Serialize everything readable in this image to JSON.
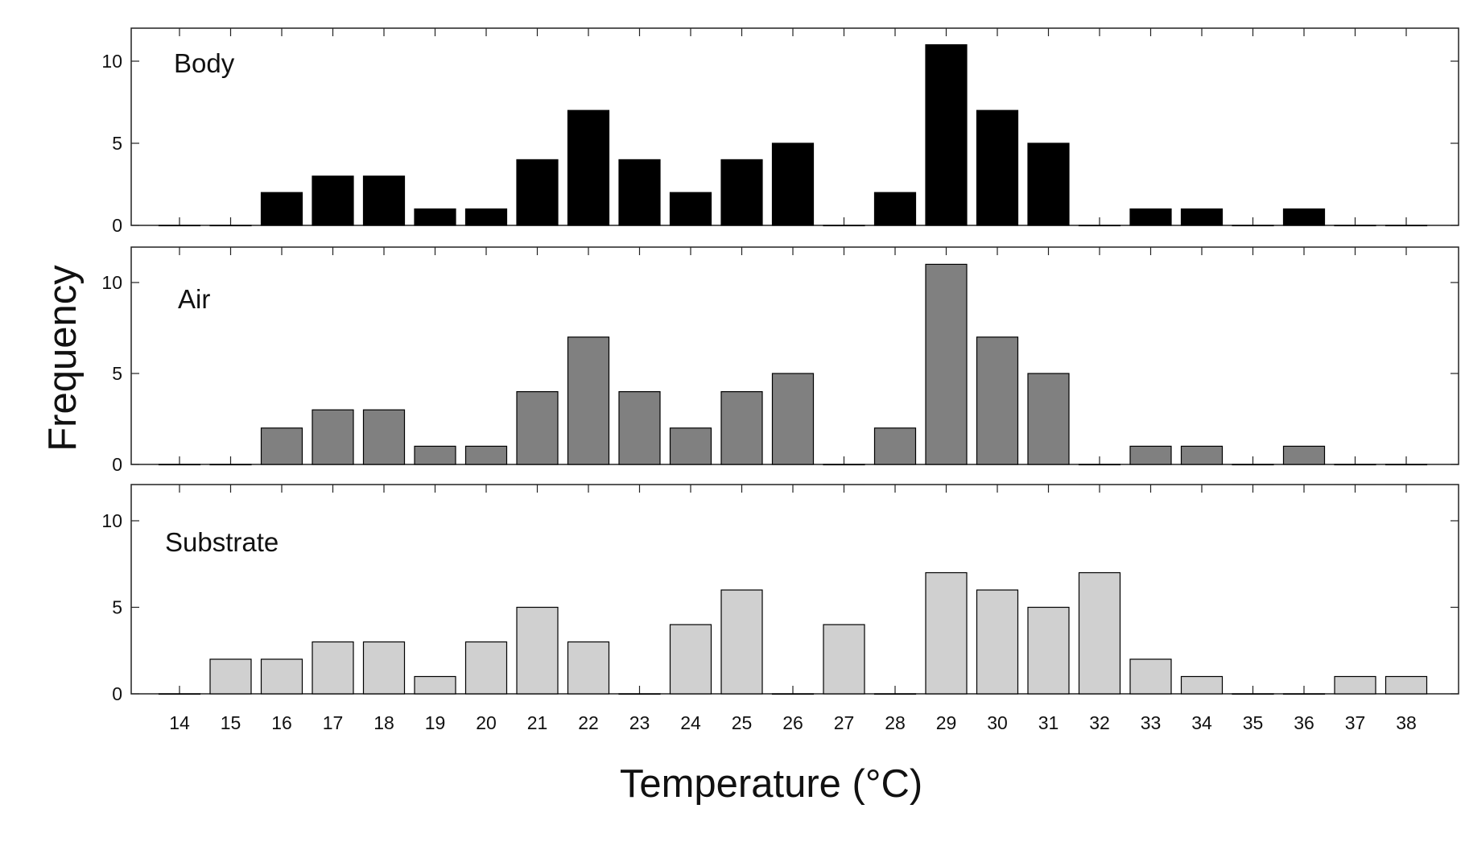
{
  "chart_data": {
    "type": "bar",
    "xlabel": "Temperature (°C)",
    "ylabel": "Frequency",
    "categories": [
      "14",
      "15",
      "16",
      "17",
      "18",
      "19",
      "20",
      "21",
      "22",
      "23",
      "24",
      "25",
      "26",
      "27",
      "28",
      "29",
      "30",
      "31",
      "32",
      "33",
      "34",
      "35",
      "36",
      "37",
      "38"
    ],
    "ylim": [
      0,
      12
    ],
    "yticks": [
      "0",
      "5",
      "10"
    ],
    "grid": false,
    "panels": [
      {
        "name": "Body",
        "color": "#000000",
        "values": [
          0,
          0,
          2,
          3,
          3,
          1,
          1,
          4,
          7,
          4,
          2,
          4,
          5,
          0,
          2,
          11,
          7,
          5,
          0,
          1,
          1,
          0,
          1,
          0,
          0
        ]
      },
      {
        "name": "Air",
        "color": "#808080",
        "values": [
          0,
          0,
          2,
          3,
          3,
          1,
          1,
          4,
          7,
          4,
          2,
          4,
          5,
          0,
          2,
          11,
          7,
          5,
          0,
          1,
          1,
          0,
          1,
          0,
          0
        ]
      },
      {
        "name": "Substrate",
        "color": "#d0d0d0",
        "values": [
          0,
          2,
          2,
          3,
          3,
          1,
          3,
          5,
          3,
          0,
          4,
          6,
          0,
          4,
          0,
          7,
          6,
          5,
          7,
          2,
          1,
          0,
          0,
          1,
          1
        ]
      }
    ]
  }
}
